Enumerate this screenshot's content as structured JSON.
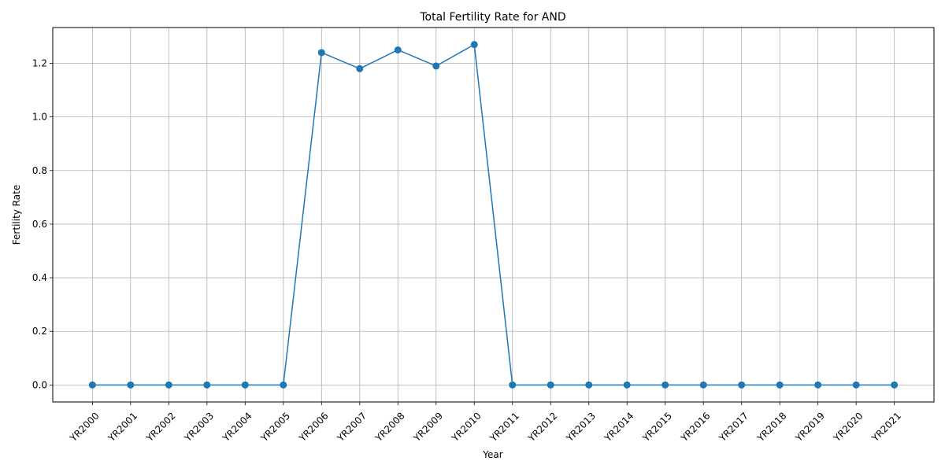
{
  "chart_data": {
    "type": "line",
    "title": "Total Fertility Rate for AND",
    "xlabel": "Year",
    "ylabel": "Fertility Rate",
    "categories": [
      "YR2000",
      "YR2001",
      "YR2002",
      "YR2003",
      "YR2004",
      "YR2005",
      "YR2006",
      "YR2007",
      "YR2008",
      "YR2009",
      "YR2010",
      "YR2011",
      "YR2012",
      "YR2013",
      "YR2014",
      "YR2015",
      "YR2016",
      "YR2017",
      "YR2018",
      "YR2019",
      "YR2020",
      "YR2021"
    ],
    "series": [
      {
        "values": [
          0,
          0,
          0,
          0,
          0,
          0,
          1.24,
          1.18,
          1.25,
          1.19,
          1.27,
          0,
          0,
          0,
          0,
          0,
          0,
          0,
          0,
          0,
          0,
          0
        ]
      }
    ],
    "ylim": [
      -0.0635,
      1.3335
    ],
    "yticks": [
      "0.0",
      "0.2",
      "0.4",
      "0.6",
      "0.8",
      "1.0",
      "1.2"
    ],
    "grid": true,
    "line_color": "#1f77b4",
    "marker": "circle"
  }
}
